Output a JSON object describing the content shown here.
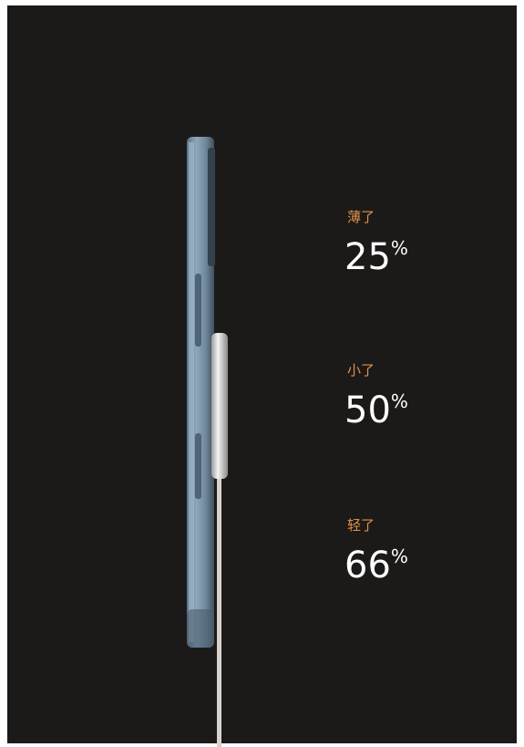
{
  "stats": [
    {
      "label": "薄了",
      "value": "25",
      "unit": "%"
    },
    {
      "label": "小了",
      "value": "50",
      "unit": "%"
    },
    {
      "label": "轻了",
      "value": "66",
      "unit": "%"
    }
  ]
}
